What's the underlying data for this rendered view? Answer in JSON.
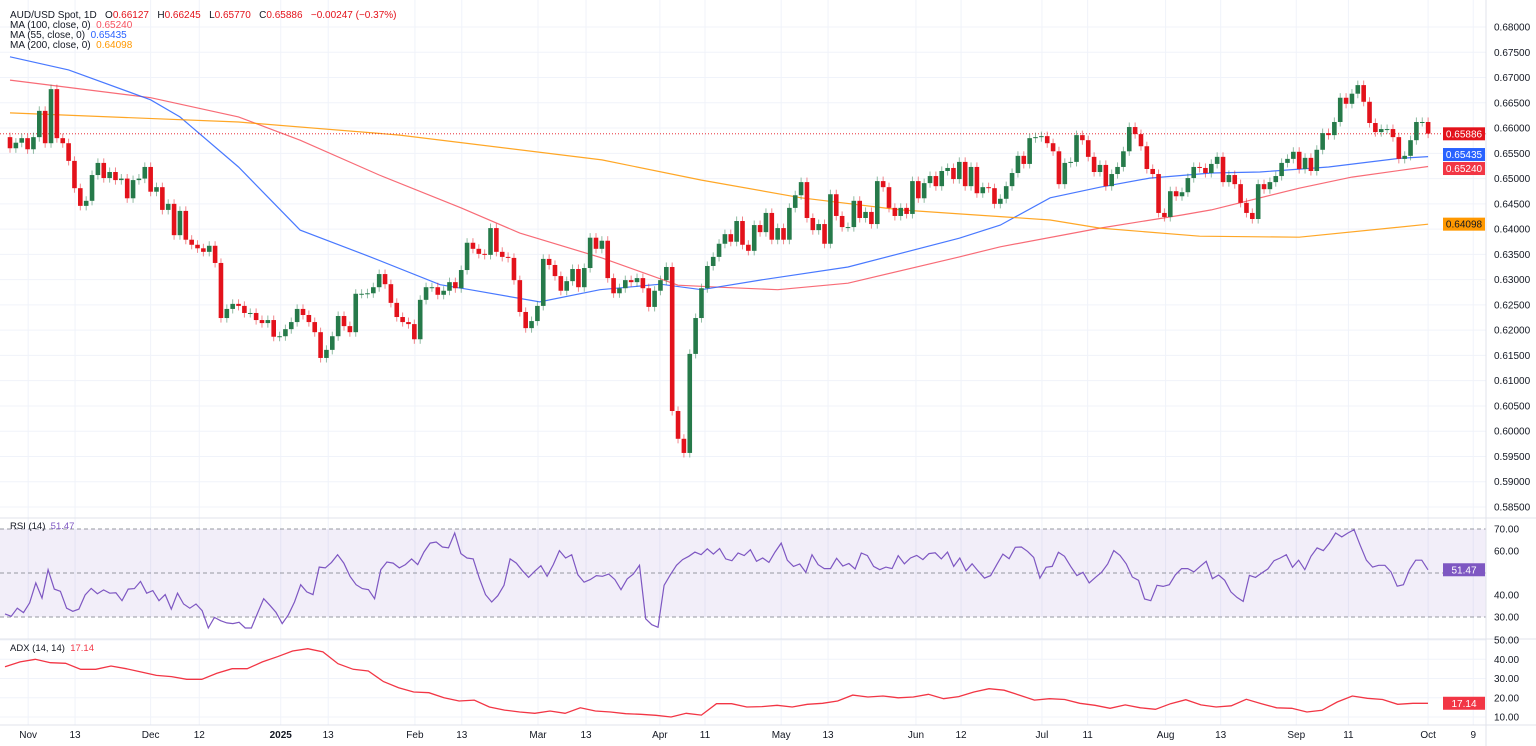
{
  "legend": {
    "symbol": "AUD/USD Spot, 1D",
    "open_label": "O",
    "open": "0.66127",
    "high_label": "H",
    "high": "0.66245",
    "low_label": "L",
    "low": "0.65770",
    "close_label": "C",
    "close": "0.65886",
    "change": "−0.00247 (−0.37%)"
  },
  "indicators": [
    {
      "label": "MA (100, close, 0)",
      "value": "0.65240",
      "color": "#f7525f"
    },
    {
      "label": "MA (55, close, 0)",
      "value": "0.65435",
      "color": "#2962ff"
    },
    {
      "label": "MA (200, close, 0)",
      "value": "0.64098",
      "color": "#ff9800"
    }
  ],
  "rsi": {
    "label": "RSI (14)",
    "value": "51.47",
    "color": "#7e57c2"
  },
  "adx": {
    "label": "ADX (14, 14)",
    "value": "17.14",
    "color": "#f23645"
  },
  "colors": {
    "up": "#267a4a",
    "down": "#e3121b",
    "last_price": "#e3121b"
  },
  "chart_data": {
    "type": "candlestick",
    "first_open": 0.6582,
    "last_price": 0.65886,
    "closes": [
      0.656,
      0.6571,
      0.658,
      0.6558,
      0.6582,
      0.6634,
      0.657,
      0.6677,
      0.658,
      0.657,
      0.6535,
      0.6481,
      0.6446,
      0.6456,
      0.6507,
      0.6531,
      0.6501,
      0.6513,
      0.6497,
      0.65,
      0.6461,
      0.6497,
      0.65,
      0.6523,
      0.6474,
      0.6483,
      0.6438,
      0.645,
      0.6388,
      0.6436,
      0.6379,
      0.6369,
      0.6362,
      0.6355,
      0.6367,
      0.6333,
      0.6224,
      0.6242,
      0.6252,
      0.6248,
      0.6234,
      0.6234,
      0.622,
      0.6214,
      0.622,
      0.6187,
      0.6188,
      0.6202,
      0.6216,
      0.6242,
      0.623,
      0.6216,
      0.6196,
      0.6145,
      0.6161,
      0.6188,
      0.6228,
      0.6208,
      0.6196,
      0.6272,
      0.6272,
      0.6273,
      0.6285,
      0.6311,
      0.6291,
      0.6254,
      0.6226,
      0.6216,
      0.6212,
      0.6182,
      0.626,
      0.6285,
      0.6285,
      0.627,
      0.6278,
      0.6295,
      0.6283,
      0.6319,
      0.6373,
      0.6361,
      0.6351,
      0.6349,
      0.6402,
      0.6355,
      0.6345,
      0.6343,
      0.6299,
      0.6236,
      0.6204,
      0.6218,
      0.6248,
      0.6341,
      0.6329,
      0.6307,
      0.6278,
      0.6297,
      0.6321,
      0.6285,
      0.6323,
      0.6383,
      0.6361,
      0.6377,
      0.6303,
      0.6273,
      0.6283,
      0.6299,
      0.6295,
      0.6303,
      0.6283,
      0.6246,
      0.6278,
      0.6299,
      0.6325,
      0.604,
      0.5985,
      0.5957,
      0.6153,
      0.6224,
      0.6283,
      0.6327,
      0.6345,
      0.6371,
      0.639,
      0.6375,
      0.6416,
      0.6369,
      0.6357,
      0.6408,
      0.6394,
      0.6432,
      0.6379,
      0.6402,
      0.6379,
      0.6442,
      0.6467,
      0.6493,
      0.6422,
      0.6398,
      0.641,
      0.6371,
      0.6469,
      0.6426,
      0.6404,
      0.6404,
      0.6456,
      0.6422,
      0.6434,
      0.641,
      0.6495,
      0.6483,
      0.6442,
      0.6426,
      0.6442,
      0.643,
      0.6495,
      0.6461,
      0.6491,
      0.6505,
      0.6485,
      0.6515,
      0.6521,
      0.6499,
      0.6533,
      0.6485,
      0.6523,
      0.6471,
      0.6483,
      0.6481,
      0.645,
      0.646,
      0.6485,
      0.6511,
      0.6545,
      0.6529,
      0.658,
      0.6582,
      0.6584,
      0.657,
      0.6554,
      0.6489,
      0.6531,
      0.6533,
      0.6586,
      0.6576,
      0.6543,
      0.6513,
      0.6527,
      0.6485,
      0.6509,
      0.6523,
      0.6554,
      0.6602,
      0.6588,
      0.6564,
      0.6519,
      0.6509,
      0.6432,
      0.6424,
      0.6475,
      0.6465,
      0.6473,
      0.6501,
      0.6523,
      0.6521,
      0.6511,
      0.6529,
      0.6543,
      0.6493,
      0.6507,
      0.6489,
      0.6452,
      0.6432,
      0.642,
      0.6489,
      0.6479,
      0.6493,
      0.6505,
      0.6531,
      0.6539,
      0.6553,
      0.6519,
      0.6541,
      0.6515,
      0.6557,
      0.659,
      0.6586,
      0.6612,
      0.666,
      0.6648,
      0.6668,
      0.6685,
      0.6652,
      0.661,
      0.6592,
      0.6598,
      0.6598,
      0.6582,
      0.6539,
      0.6545,
      0.6576,
      0.6612,
      0.6612,
      0.6589
    ],
    "moving_averages": [
      {
        "name": "MA (100, close, 0)",
        "color": "#f7525f",
        "points": [
          [
            0,
            0.6695
          ],
          [
            24,
            0.666
          ],
          [
            39,
            0.6622
          ],
          [
            49.5,
            0.6576
          ],
          [
            63,
            0.6507
          ],
          [
            77,
            0.6442
          ],
          [
            87,
            0.6392
          ],
          [
            101,
            0.6343
          ],
          [
            114,
            0.6289
          ],
          [
            121,
            0.6285
          ],
          [
            131,
            0.628
          ],
          [
            143,
            0.6293
          ],
          [
            162,
            0.6345
          ],
          [
            169,
            0.6365
          ],
          [
            186,
            0.6402
          ],
          [
            200,
            0.6428
          ],
          [
            205,
            0.6438
          ],
          [
            220,
            0.6481
          ],
          [
            229,
            0.6503
          ],
          [
            242,
            0.6524
          ]
        ]
      },
      {
        "name": "MA (55, close, 0)",
        "color": "#2962ff",
        "points": [
          [
            0,
            0.6741
          ],
          [
            10,
            0.6715
          ],
          [
            24,
            0.6656
          ],
          [
            29,
            0.6622
          ],
          [
            39,
            0.6523
          ],
          [
            49.5,
            0.6398
          ],
          [
            61.5,
            0.6345
          ],
          [
            73.4,
            0.629
          ],
          [
            78.5,
            0.628
          ],
          [
            90.4,
            0.6256
          ],
          [
            100.7,
            0.628
          ],
          [
            111,
            0.6291
          ],
          [
            118,
            0.628
          ],
          [
            128,
            0.6299
          ],
          [
            143,
            0.6325
          ],
          [
            162,
            0.6382
          ],
          [
            169,
            0.6408
          ],
          [
            177.5,
            0.6462
          ],
          [
            186,
            0.6483
          ],
          [
            194.5,
            0.6501
          ],
          [
            205,
            0.6511
          ],
          [
            213.3,
            0.6513
          ],
          [
            225,
            0.6523
          ],
          [
            237,
            0.654
          ],
          [
            242,
            0.65435
          ]
        ]
      },
      {
        "name": "MA (200, close, 0)",
        "color": "#ff9800",
        "points": [
          [
            0,
            0.663
          ],
          [
            39,
            0.6612
          ],
          [
            66.5,
            0.6586
          ],
          [
            101,
            0.6537
          ],
          [
            118,
            0.6497
          ],
          [
            135,
            0.6462
          ],
          [
            152,
            0.6438
          ],
          [
            162,
            0.643
          ],
          [
            177.5,
            0.6418
          ],
          [
            186,
            0.6402
          ],
          [
            203,
            0.6386
          ],
          [
            220,
            0.6384
          ],
          [
            242,
            0.64098
          ]
        ]
      }
    ],
    "y_ticks": [
      "0.68000",
      "0.67500",
      "0.67000",
      "0.66500",
      "0.66000",
      "0.65500",
      "0.65000",
      "0.64500",
      "0.64000",
      "0.63500",
      "0.63000",
      "0.62500",
      "0.62000",
      "0.61500",
      "0.61000",
      "0.60500",
      "0.60000",
      "0.59500",
      "0.59000",
      "0.58500"
    ],
    "ylim": [
      0.585,
      0.68
    ],
    "x_ticks": [
      {
        "label": "Nov",
        "bar": 3.1
      },
      {
        "label": "13",
        "bar": 11.1
      },
      {
        "label": "Dec",
        "bar": 24
      },
      {
        "label": "12",
        "bar": 32.3
      },
      {
        "label": "2025",
        "bar": 46.2,
        "bold": true
      },
      {
        "label": "13",
        "bar": 54.3
      },
      {
        "label": "Feb",
        "bar": 69.1
      },
      {
        "label": "13",
        "bar": 77.1
      },
      {
        "label": "Mar",
        "bar": 90.1
      },
      {
        "label": "13",
        "bar": 98.3
      },
      {
        "label": "Apr",
        "bar": 110.9
      },
      {
        "label": "11",
        "bar": 118.6
      },
      {
        "label": "May",
        "bar": 131.6
      },
      {
        "label": "13",
        "bar": 139.6
      },
      {
        "label": "Jun",
        "bar": 154.6
      },
      {
        "label": "12",
        "bar": 162.3
      },
      {
        "label": "Jul",
        "bar": 176.1
      },
      {
        "label": "11",
        "bar": 183.9
      },
      {
        "label": "Aug",
        "bar": 197.2
      },
      {
        "label": "13",
        "bar": 206.6
      },
      {
        "label": "Sep",
        "bar": 219.5
      },
      {
        "label": "11",
        "bar": 228.4
      },
      {
        "label": "Oct",
        "bar": 242
      },
      {
        "label": "9",
        "bar": 249.7
      }
    ],
    "rsi": {
      "levels": [
        70,
        50,
        30
      ],
      "y_ticks": [
        "70.00",
        "60.00",
        "40.00",
        "30.00"
      ],
      "values": [
        31.4,
        30.3,
        34,
        32,
        36.4,
        45.5,
        38.6,
        51.5,
        42.7,
        41.7,
        34,
        32.6,
        33.6,
        40,
        43,
        40.6,
        42.3,
        40.8,
        41,
        37.4,
        42.7,
        42.9,
        46.2,
        40.8,
        42,
        37.4,
        40.2,
        33.6,
        40.8,
        35.9,
        34,
        35.9,
        32.9,
        25,
        29.8,
        28.3,
        27.3,
        27,
        27.6,
        25,
        25,
        31.8,
        38.3,
        35.3,
        32.1,
        27,
        31,
        36.8,
        44.7,
        41.4,
        40.2,
        52.7,
        52.3,
        54.8,
        58.3,
        54.5,
        48.5,
        44.7,
        42.9,
        42.4,
        38.3,
        51.5,
        55,
        54.5,
        52.3,
        53.8,
        56.4,
        53.8,
        59.5,
        63.6,
        64.1,
        61.8,
        61.4,
        68.2,
        58.8,
        56.8,
        56.4,
        47.7,
        40.2,
        36.8,
        39.7,
        44.4,
        56.4,
        54.5,
        51,
        48,
        50.8,
        53.3,
        48.5,
        53.8,
        60.2,
        56.8,
        58.3,
        49.2,
        45.8,
        47,
        48.8,
        48.5,
        49.5,
        47,
        42.4,
        47.3,
        49.5,
        53.5,
        29.2,
        26.5,
        25.3,
        44.4,
        49.2,
        53.5,
        56.1,
        57.6,
        59.5,
        58.3,
        61,
        58.6,
        61.1,
        56.4,
        55.6,
        59.1,
        57.9,
        60.6,
        55.3,
        56.8,
        54.8,
        59.5,
        63.6,
        55.8,
        53,
        54.1,
        50.3,
        58.3,
        53.8,
        52,
        52,
        56.7,
        53.2,
        54.3,
        51.8,
        59.1,
        57.9,
        53,
        51.5,
        52.7,
        52,
        57.9,
        54.2,
        56.8,
        58,
        56.1,
        58.8,
        59.2,
        56.4,
        59.5,
        53,
        56.8,
        51,
        54.2,
        50.8,
        47.7,
        48.8,
        53.8,
        58.6,
        56.5,
        61.7,
        61.8,
        59.8,
        57.1,
        47.7,
        52.6,
        53,
        59.4,
        57.6,
        53,
        48.8,
        50.3,
        45.5,
        48,
        50.3,
        54.1,
        60.2,
        58,
        54.2,
        48.2,
        46.7,
        38.2,
        37.4,
        44.4,
        43.9,
        44.7,
        49.2,
        52,
        52,
        50.5,
        53,
        55.3,
        47.4,
        49.1,
        46.7,
        41.4,
        38.9,
        37.1,
        48.9,
        48,
        50,
        51.8,
        55.6,
        56.8,
        58.3,
        52.6,
        55.8,
        51.5,
        57.6,
        61.4,
        60.2,
        63.6,
        68.2,
        66.4,
        68.2,
        69.7,
        62.6,
        55.8,
        52.7,
        53.5,
        53.5,
        50.5,
        44,
        44.7,
        51.5,
        55.8,
        55.8,
        51.47
      ]
    },
    "adx": {
      "y_ticks": [
        "50.00",
        "40.00",
        "30.00",
        "20.00",
        "10.00"
      ],
      "values": [
        36.1,
        38.6,
        40,
        38.2,
        37.9,
        34.8,
        34.8,
        36.5,
        35.1,
        33.4,
        31.6,
        31,
        29.6,
        29.6,
        32.7,
        35.1,
        35.1,
        38.6,
        41.3,
        44.3,
        45.5,
        43.8,
        37.7,
        34.8,
        33.9,
        28.4,
        25.2,
        23,
        22.6,
        20,
        18.3,
        18.8,
        15.2,
        13.6,
        12.6,
        11.9,
        13.1,
        11.9,
        14.8,
        13.1,
        12.6,
        11.7,
        11.4,
        10.9,
        10,
        11.9,
        11,
        16.9,
        16.9,
        15.2,
        15.4,
        16.1,
        15.2,
        16.6,
        17.1,
        18.3,
        21.4,
        20.4,
        20.9,
        20,
        20.4,
        21.8,
        19.5,
        20.6,
        23,
        24.7,
        23.9,
        21.4,
        18.8,
        19.5,
        19.1,
        17.1,
        16.1,
        14.5,
        16.3,
        14.8,
        14,
        16.9,
        19,
        16.3,
        15.2,
        15.8,
        19.2,
        16.9,
        14.8,
        14.5,
        12.6,
        13.5,
        17.8,
        20.9,
        19.7,
        19.1,
        16.6,
        17.1,
        17.14
      ]
    }
  }
}
